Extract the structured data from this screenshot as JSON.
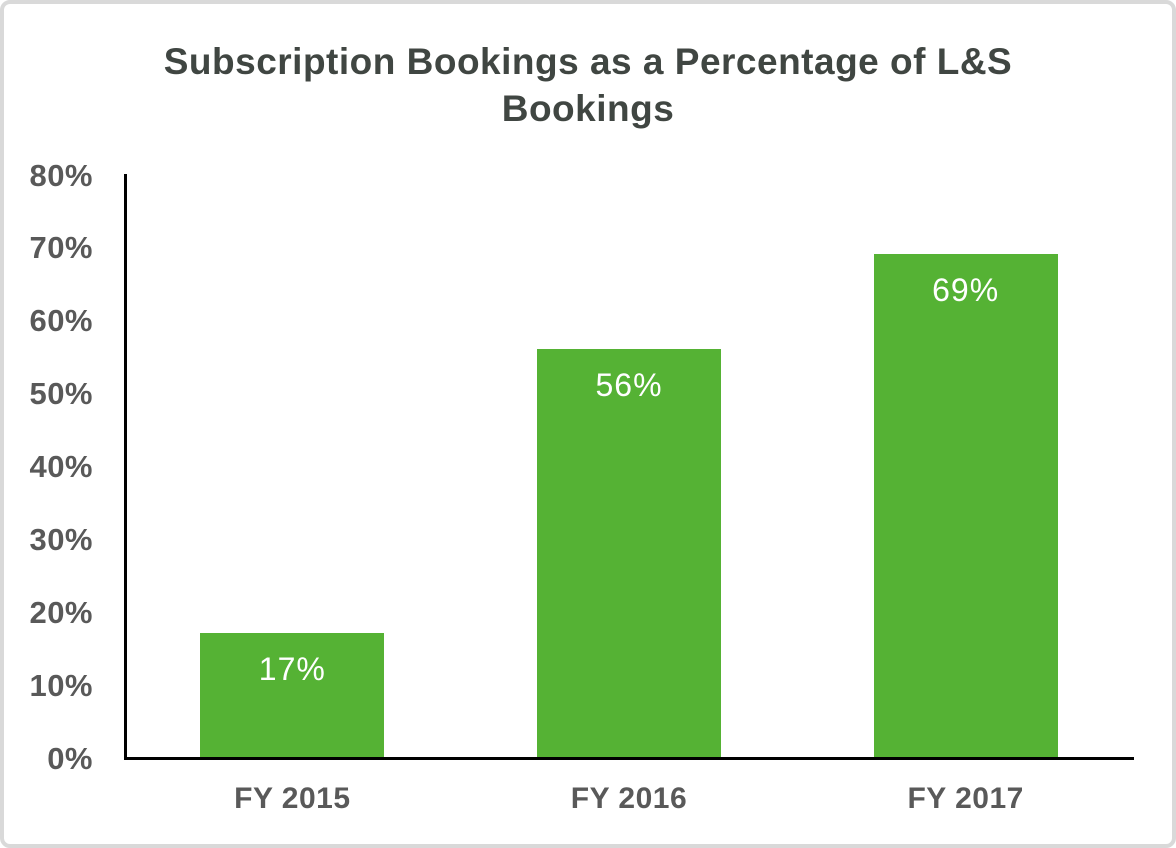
{
  "frame": {
    "background": "#ffffff",
    "border_color": "#d9d9d9"
  },
  "chart_data": {
    "type": "bar",
    "title": "Subscription Bookings as a Percentage of L&S Bookings",
    "categories": [
      "FY 2015",
      "FY 2016",
      "FY 2017"
    ],
    "values": [
      17,
      56,
      69
    ],
    "value_labels": [
      "17%",
      "56%",
      "69%"
    ],
    "xlabel": "",
    "ylabel": "",
    "ylim": [
      0,
      80
    ],
    "ytick_step": 10,
    "ytick_labels": [
      "0%",
      "10%",
      "20%",
      "30%",
      "40%",
      "50%",
      "60%",
      "70%",
      "80%"
    ],
    "grid": false,
    "legend_position": "none",
    "bar_color": "#55b234",
    "value_label_color": "#ffffff",
    "axis_color": "#000000",
    "tick_label_color": "#595959",
    "title_color": "#404642"
  }
}
